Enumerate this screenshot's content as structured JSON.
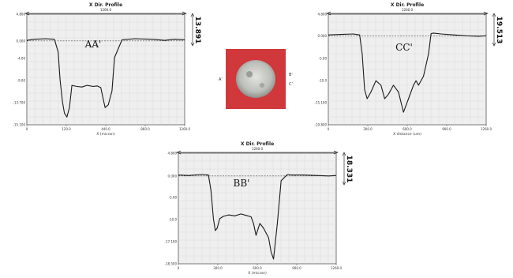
{
  "chart_data": [
    {
      "type": "line",
      "title": "X Dir. Profile",
      "top_label": "1260.0",
      "label": "AA'",
      "dimension": "13.891",
      "xlabel": "X (micron)",
      "xlim": [
        0,
        1260
      ],
      "ylim": [
        -15.1,
        4.8
      ],
      "x_ticks": [
        "0",
        "120.0",
        "440.0",
        "860.0",
        "1260.0"
      ],
      "y_ticks": [
        "4.800",
        "0.000",
        "-4.00",
        "-9.00",
        "-13.700",
        "-15.100"
      ],
      "series": [
        {
          "x": [
            0,
            60,
            150,
            220,
            250,
            265,
            285,
            300,
            320,
            340,
            360,
            400,
            440,
            480,
            530,
            560,
            590,
            610,
            625,
            650,
            680,
            700,
            760,
            860,
            1000,
            1100,
            1180,
            1260
          ],
          "y": [
            0.1,
            0.3,
            0.4,
            0.3,
            -2,
            -7,
            -11,
            -13,
            -13.7,
            -12,
            -8,
            -8.2,
            -8.3,
            -8,
            -8.2,
            -8.1,
            -8.4,
            -10.5,
            -12,
            -11.5,
            -9,
            -3,
            0.2,
            0.4,
            0.3,
            0.1,
            0.3,
            0.2
          ]
        }
      ]
    },
    {
      "type": "line",
      "title": "X Dir. Profile",
      "top_label": "1260.0",
      "label": "CC'",
      "dimension": "19.513",
      "xlabel": "X distance (um)",
      "xlim": [
        0,
        1260
      ],
      "ylim": [
        -19.8,
        4.8
      ],
      "x_ticks": [
        "0",
        "300.0",
        "600.0",
        "900.0",
        "1260.0"
      ],
      "y_ticks": [
        "4.800",
        "0.000",
        "-5.00",
        "-10.0",
        "-15.100",
        "-19.800"
      ],
      "series": [
        {
          "x": [
            0,
            100,
            200,
            250,
            270,
            290,
            310,
            340,
            380,
            420,
            450,
            480,
            520,
            560,
            600,
            640,
            680,
            700,
            720,
            760,
            800,
            820,
            840,
            900,
            1000,
            1100,
            1200,
            1260
          ],
          "y": [
            0.2,
            0.3,
            0.4,
            0.2,
            -4,
            -12,
            -14,
            -12.5,
            -10,
            -11,
            -14,
            -13,
            -11,
            -12.5,
            -17,
            -14,
            -11,
            -10,
            -11,
            -9,
            -4,
            0.5,
            0.6,
            0.4,
            0.2,
            0,
            -0.1,
            0
          ]
        }
      ]
    },
    {
      "type": "line",
      "title": "X Dir. Profile",
      "top_label": "1260.0",
      "label": "BB'",
      "dimension": "18.331",
      "xlabel": "X (micron)",
      "xlim": [
        0,
        1260
      ],
      "ylim": [
        -18.5,
        4.8
      ],
      "x_ticks": [
        "0",
        "300.0",
        "600.0",
        "900.0",
        "1260.0"
      ],
      "y_ticks": [
        "4.800",
        "0.000",
        "-5.00",
        "-10.0",
        "-17.100",
        "-18.500"
      ],
      "series": [
        {
          "x": [
            0,
            80,
            180,
            240,
            260,
            280,
            295,
            310,
            330,
            360,
            400,
            450,
            500,
            540,
            580,
            600,
            620,
            650,
            680,
            720,
            740,
            760,
            790,
            820,
            870,
            900,
            1000,
            1100,
            1200,
            1260
          ],
          "y": [
            0.2,
            0.1,
            0.3,
            0.2,
            -3,
            -9,
            -11.5,
            -11,
            -9,
            -8.5,
            -8.2,
            -8.4,
            -8,
            -8.3,
            -8.6,
            -10,
            -12.5,
            -10,
            -11,
            -13,
            -16,
            -17.5,
            -10,
            -1,
            0.3,
            0.2,
            0.2,
            0.1,
            0,
            0.1
          ]
        }
      ]
    }
  ],
  "photo": {
    "labels": [
      "A'",
      "B'",
      "C'"
    ],
    "colors": {
      "background": "#d0383b",
      "sample": "#c7c9c6"
    }
  }
}
